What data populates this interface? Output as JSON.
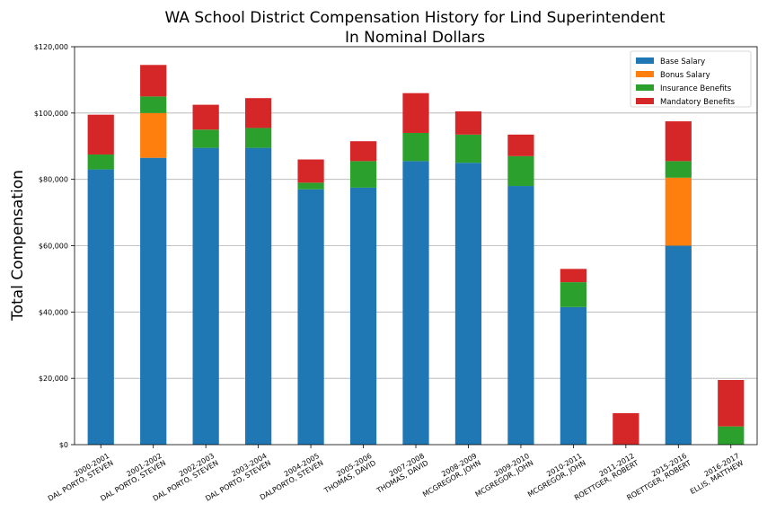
{
  "chart_data": {
    "type": "bar",
    "stacked": true,
    "title": "WA School District Compensation History for Lind Superintendent",
    "subtitle": "In Nominal Dollars",
    "xlabel": "",
    "ylabel": "Total Compensation",
    "ylim": [
      0,
      120000
    ],
    "yticks": [
      0,
      20000,
      40000,
      60000,
      80000,
      100000,
      120000
    ],
    "ytick_labels": [
      "$0",
      "$20,000",
      "$40,000",
      "$60,000",
      "$80,000",
      "$100,000",
      "$120,000"
    ],
    "grid": "horizontal",
    "legend_position": "top-right",
    "categories": [
      [
        "2000-2001",
        "DAL PORTO, STEVEN"
      ],
      [
        "2001-2002",
        "DAL PORTO, STEVEN"
      ],
      [
        "2002-2003",
        "DAL PORTO, STEVEN"
      ],
      [
        "2003-2004",
        "DAL PORTO, STEVEN"
      ],
      [
        "2004-2005",
        "DALPORTO, STEVEN"
      ],
      [
        "2005-2006",
        "THOMAS, DAVID"
      ],
      [
        "2007-2008",
        "THOMAS, DAVID"
      ],
      [
        "2008-2009",
        "MCGREGOR, JOHN"
      ],
      [
        "2009-2010",
        "MCGREGOR, JOHN"
      ],
      [
        "2010-2011",
        "MCGREGOR, JOHN"
      ],
      [
        "2011-2012",
        "ROETTGER, ROBERT"
      ],
      [
        "2015-2016",
        "ROETTGER, ROBERT"
      ],
      [
        "2016-2017",
        "ELLIS, MATTHEW"
      ]
    ],
    "series": [
      {
        "name": "Base Salary",
        "color": "#1f77b4",
        "values": [
          83000,
          86500,
          89500,
          89500,
          77000,
          77500,
          85500,
          85000,
          78000,
          41500,
          0,
          60000,
          0
        ]
      },
      {
        "name": "Bonus Salary",
        "color": "#ff7f0e",
        "values": [
          0,
          13500,
          0,
          0,
          0,
          0,
          0,
          0,
          0,
          0,
          0,
          20500,
          0
        ]
      },
      {
        "name": "Insurance Benefits",
        "color": "#2ca02c",
        "values": [
          4500,
          5000,
          5500,
          6000,
          2000,
          8000,
          8500,
          8500,
          9000,
          7500,
          0,
          5000,
          5500
        ]
      },
      {
        "name": "Mandatory Benefits",
        "color": "#d62728",
        "values": [
          12000,
          9500,
          7500,
          9000,
          7000,
          6000,
          12000,
          7000,
          6500,
          4000,
          9500,
          12000,
          14000
        ]
      }
    ]
  }
}
